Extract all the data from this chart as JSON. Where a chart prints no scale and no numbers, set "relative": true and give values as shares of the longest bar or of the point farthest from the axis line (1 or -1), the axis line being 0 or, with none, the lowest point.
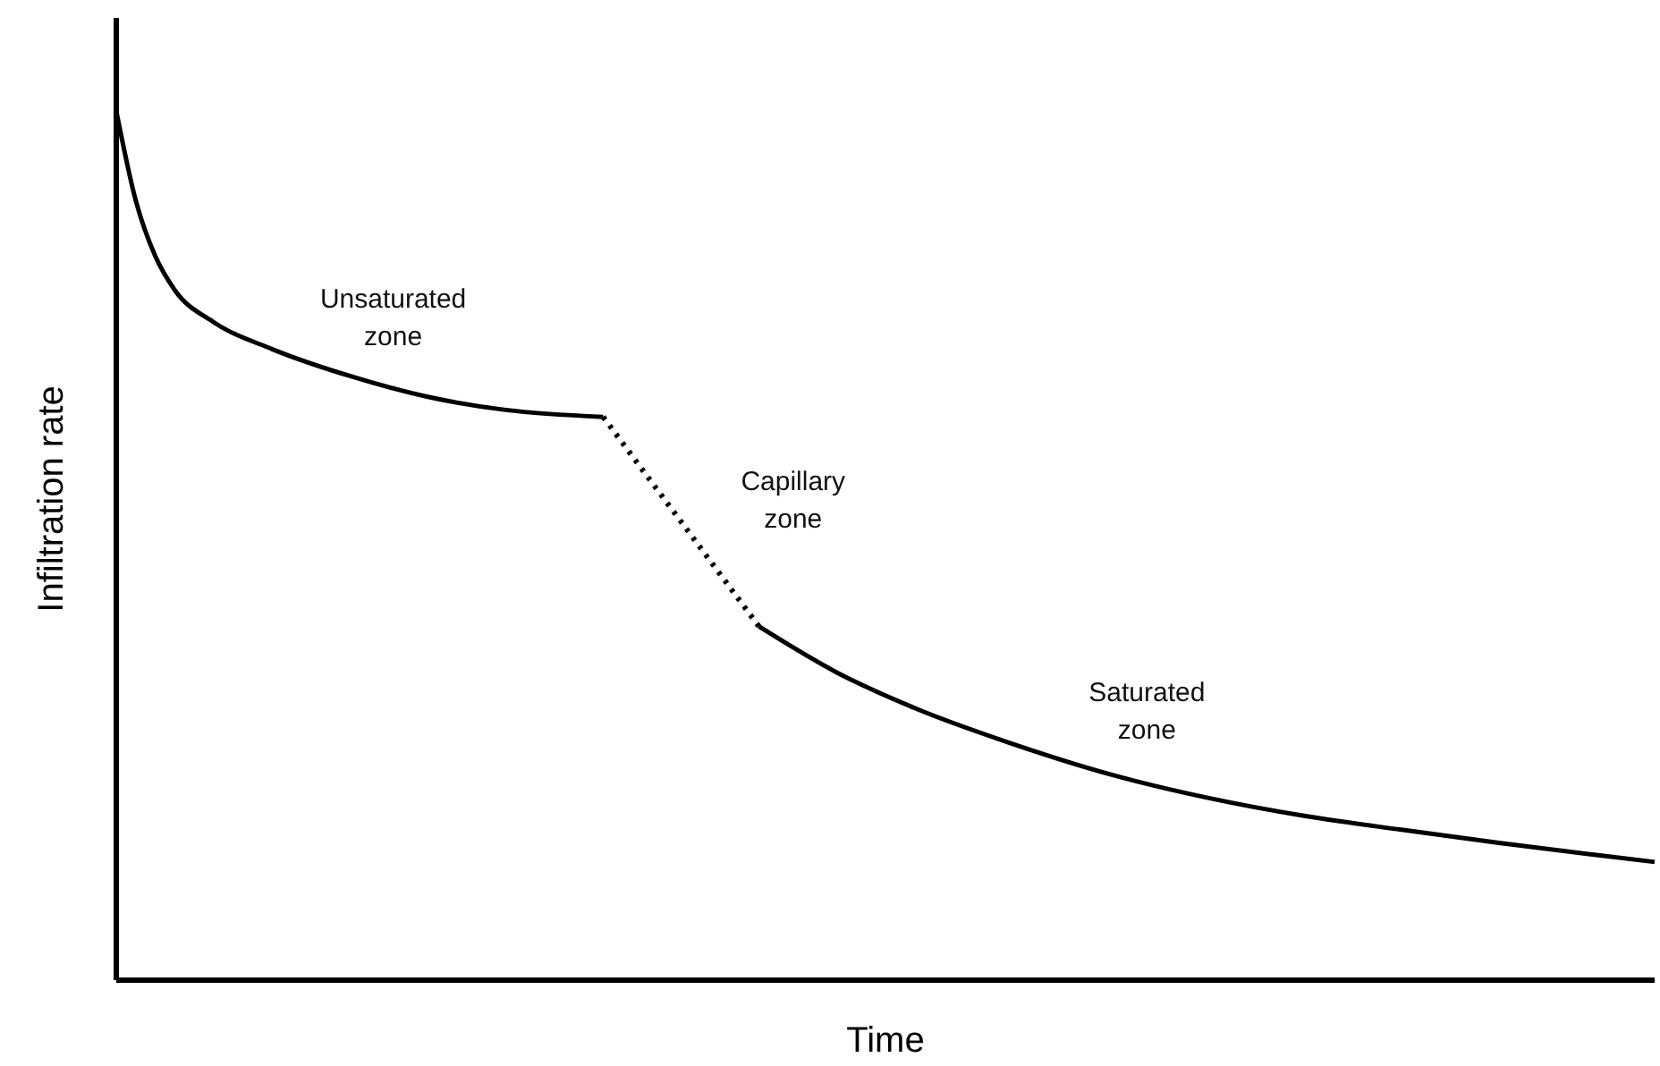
{
  "chart_data": {
    "type": "line",
    "relative": true,
    "xlabel": "Time",
    "ylabel": "Infiltration rate",
    "categories": [
      null,
      null,
      null,
      null,
      null,
      null,
      null,
      null,
      null,
      null,
      null,
      null,
      null,
      null,
      null,
      null,
      null,
      null,
      null,
      null,
      null,
      null,
      null,
      null,
      null,
      null,
      null,
      null,
      null,
      null,
      null,
      null,
      null,
      null,
      null,
      null,
      null,
      null,
      null,
      null,
      null,
      null,
      null,
      null,
      null,
      null,
      null,
      null,
      null,
      null,
      null,
      null,
      null,
      null,
      null,
      null,
      null,
      null,
      null,
      null,
      null,
      null,
      null,
      null,
      null,
      null,
      null,
      null,
      null,
      null,
      null,
      null,
      null,
      null,
      null,
      null,
      null,
      null,
      null,
      null
    ],
    "series": [
      {
        "color": "#000000",
        "line_style": "solid",
        "values": [
          1,
          0.897,
          0.833,
          0.794,
          null,
          0.757,
          null,
          null,
          0.726,
          null,
          null,
          null,
          0.695,
          null,
          null,
          null,
          0.671,
          null,
          null,
          null,
          0.656,
          null,
          null,
          null,
          null,
          0.648,
          null,
          null,
          null,
          null,
          null,
          null,
          null,
          null,
          null,
          null,
          null,
          null,
          null,
          null,
          null,
          null,
          null,
          null,
          null,
          null,
          null,
          null,
          null,
          null,
          null,
          null,
          null,
          null,
          null,
          null,
          null,
          null,
          null,
          null,
          null,
          null,
          null,
          null,
          null,
          null,
          null,
          null,
          null,
          null,
          null,
          null,
          null,
          null,
          null,
          null,
          null,
          null,
          null,
          null
        ]
      },
      {
        "color": "#000000",
        "line_style": "dotted",
        "values": [
          null,
          null,
          null,
          null,
          null,
          null,
          null,
          null,
          null,
          null,
          null,
          null,
          null,
          null,
          null,
          null,
          null,
          null,
          null,
          null,
          null,
          null,
          null,
          null,
          null,
          0.648,
          null,
          null,
          null,
          null,
          null,
          null,
          null,
          0.407,
          null,
          null,
          null,
          null,
          null,
          null,
          null,
          null,
          null,
          null,
          null,
          null,
          null,
          null,
          null,
          null,
          null,
          null,
          null,
          null,
          null,
          null,
          null,
          null,
          null,
          null,
          null,
          null,
          null,
          null,
          null,
          null,
          null,
          null,
          null,
          null,
          null,
          null,
          null,
          null,
          null,
          null,
          null,
          null,
          null,
          null
        ]
      },
      {
        "color": "#000000",
        "line_style": "solid",
        "values": [
          null,
          null,
          null,
          null,
          null,
          null,
          null,
          null,
          null,
          null,
          null,
          null,
          null,
          null,
          null,
          null,
          null,
          null,
          null,
          null,
          null,
          null,
          null,
          null,
          null,
          null,
          null,
          null,
          null,
          null,
          null,
          null,
          null,
          0.407,
          null,
          null,
          null,
          0.354,
          null,
          null,
          null,
          0.313,
          null,
          null,
          null,
          null,
          0.272,
          null,
          null,
          null,
          null,
          0.237,
          null,
          null,
          null,
          null,
          0.21,
          null,
          null,
          null,
          null,
          0.189,
          null,
          null,
          null,
          null,
          0.173,
          null,
          null,
          null,
          null,
          0.158,
          null,
          null,
          null,
          null,
          0.144,
          null,
          null,
          0.136
        ]
      }
    ],
    "annotations": [
      "Unsaturated zone",
      "Capillary zone",
      "Saturated zone"
    ],
    "grid": false
  }
}
